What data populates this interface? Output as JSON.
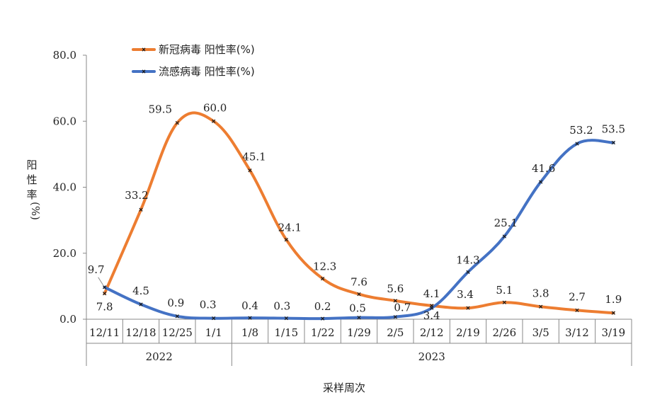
{
  "chart_data": {
    "type": "line",
    "title": "",
    "xlabel": "采样周次",
    "ylabel": "阳性率 (%)",
    "ylim": [
      0,
      80
    ],
    "yticks": [
      "0.0",
      "20.0",
      "40.0",
      "60.0",
      "80.0"
    ],
    "categories": [
      "12/11",
      "12/18",
      "12/25",
      "1/1",
      "1/8",
      "1/15",
      "1/22",
      "1/29",
      "2/5",
      "2/12",
      "2/19",
      "2/26",
      "3/5",
      "3/12",
      "3/19"
    ],
    "year_groups": [
      {
        "label": "2022",
        "span": 4
      },
      {
        "label": "2023",
        "span": 11
      }
    ],
    "legend_position": "top-left",
    "grid": false,
    "series": [
      {
        "name": "新冠病毒 阳性率(%)",
        "color": "#ED7D31",
        "values": [
          7.8,
          33.2,
          59.5,
          60.0,
          45.1,
          24.1,
          12.3,
          7.6,
          5.6,
          4.1,
          3.4,
          5.1,
          3.8,
          2.7,
          1.9
        ],
        "labels": [
          "7.8",
          "33.2",
          "59.5",
          "60.0",
          "45.1",
          "24.1",
          "12.3",
          "7.6",
          "5.6",
          "4.1",
          "3.4",
          "5.1",
          "3.8",
          "2.7",
          "1.9"
        ]
      },
      {
        "name": "流感病毒 阳性率(%)",
        "color": "#4472C4",
        "values": [
          9.7,
          4.5,
          0.9,
          0.3,
          0.4,
          0.3,
          0.2,
          0.5,
          0.7,
          3.4,
          14.3,
          25.1,
          41.6,
          53.2,
          53.5
        ],
        "labels": [
          "9.7",
          "4.5",
          "0.9",
          "0.3",
          "0.4",
          "0.3",
          "0.2",
          "0.5",
          "0.7",
          "3.4",
          "14.3",
          "25.1",
          "41.6",
          "53.2",
          "53.5"
        ]
      }
    ]
  }
}
